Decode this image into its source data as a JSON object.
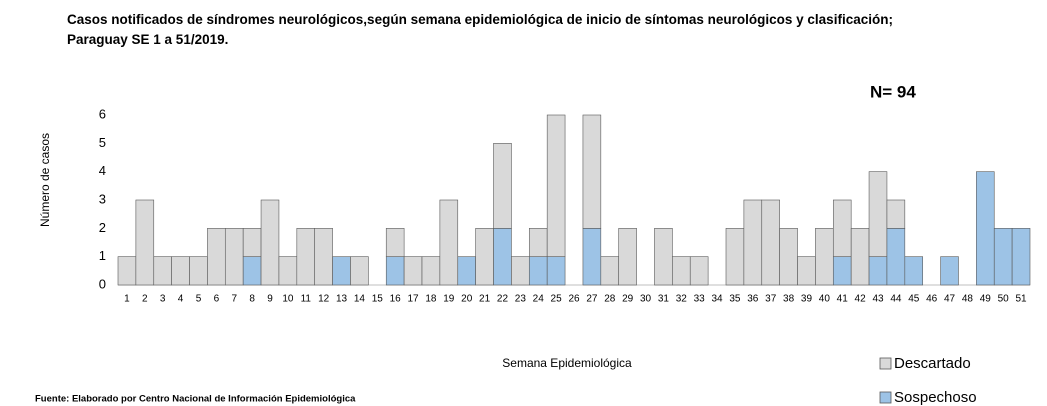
{
  "chart_data": {
    "type": "stacked_bar",
    "title": "Casos notificados de síndromes neurológicos,según semana epidemiológica de inicio de síntomas neurológicos y clasificación; Paraguay SE 1 a 51/2019.",
    "annotation": "N= 94",
    "x_label": "Semana Epidemiológica",
    "y_label": "Número de casos",
    "source": "Fuente: Elaborado por Centro Nacional de Información  Epidemiológica",
    "categories": [
      "1",
      "2",
      "3",
      "4",
      "5",
      "6",
      "7",
      "8",
      "9",
      "10",
      "11",
      "12",
      "13",
      "14",
      "15",
      "16",
      "17",
      "18",
      "19",
      "20",
      "21",
      "22",
      "23",
      "24",
      "25",
      "26",
      "27",
      "28",
      "29",
      "30",
      "31",
      "32",
      "33",
      "34",
      "35",
      "36",
      "37",
      "38",
      "39",
      "40",
      "41",
      "42",
      "43",
      "44",
      "45",
      "46",
      "47",
      "48",
      "49",
      "50",
      "51"
    ],
    "series": [
      {
        "name": "Sospechoso",
        "color": "#9dc3e6",
        "values": [
          0,
          0,
          0,
          0,
          0,
          0,
          0,
          1,
          0,
          0,
          0,
          0,
          1,
          0,
          0,
          1,
          0,
          0,
          0,
          1,
          0,
          2,
          0,
          1,
          1,
          0,
          2,
          0,
          0,
          0,
          0,
          0,
          0,
          0,
          0,
          0,
          0,
          0,
          0,
          0,
          1,
          0,
          1,
          2,
          1,
          0,
          1,
          0,
          4,
          2,
          2
        ]
      },
      {
        "name": "Descartado",
        "color": "#d9d9d9",
        "values": [
          1,
          3,
          1,
          1,
          1,
          2,
          2,
          1,
          3,
          1,
          2,
          2,
          0,
          1,
          0,
          1,
          1,
          1,
          3,
          0,
          2,
          3,
          1,
          1,
          5,
          0,
          4,
          1,
          2,
          0,
          2,
          1,
          1,
          0,
          2,
          3,
          3,
          2,
          1,
          2,
          2,
          2,
          3,
          1,
          0,
          0,
          0,
          0,
          0,
          0,
          0
        ]
      }
    ],
    "ylim": [
      0,
      6
    ],
    "yticks": [
      0,
      1,
      2,
      3,
      4,
      5,
      6
    ],
    "grid": false,
    "legend": "bottom-right"
  }
}
